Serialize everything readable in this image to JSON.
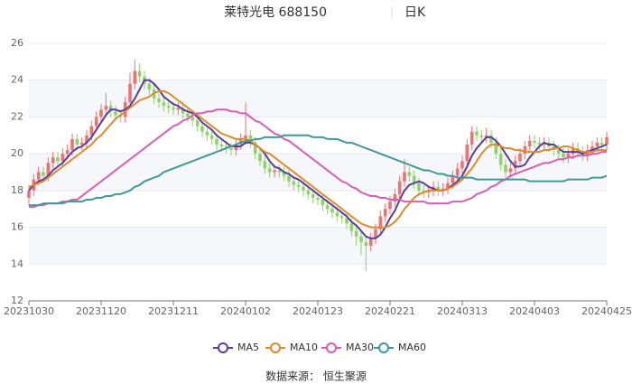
{
  "chart_data": {
    "type": "candlestick",
    "title": "莱特光电 688150",
    "period": "日K",
    "source": "数据来源： 恒生聚源",
    "up_color": "#ef7272",
    "down_color": "#8fd26a",
    "grid": true,
    "ylim": [
      12,
      26
    ],
    "yticks": [
      12,
      14,
      16,
      18,
      20,
      22,
      24,
      26
    ],
    "categories": [
      "20231030",
      null,
      null,
      null,
      null,
      null,
      null,
      null,
      null,
      null,
      null,
      null,
      null,
      null,
      null,
      "20231120",
      null,
      null,
      null,
      null,
      null,
      null,
      null,
      null,
      null,
      null,
      null,
      null,
      null,
      null,
      "20231211",
      null,
      null,
      null,
      null,
      null,
      null,
      null,
      null,
      null,
      null,
      null,
      null,
      null,
      null,
      "20240102",
      null,
      null,
      null,
      null,
      null,
      null,
      null,
      null,
      null,
      null,
      null,
      null,
      null,
      null,
      "20240123",
      null,
      null,
      null,
      null,
      null,
      null,
      null,
      null,
      null,
      null,
      null,
      null,
      null,
      null,
      "20240221",
      null,
      null,
      null,
      null,
      null,
      null,
      null,
      null,
      null,
      null,
      null,
      null,
      null,
      null,
      "20240313",
      null,
      null,
      null,
      null,
      null,
      null,
      null,
      null,
      null,
      null,
      null,
      null,
      null,
      null,
      "20240403",
      null,
      null,
      null,
      null,
      null,
      null,
      null,
      null,
      null,
      null,
      null,
      null,
      null,
      null,
      "20240425"
    ],
    "open": [
      17.6,
      18.0,
      18.6,
      19.0,
      18.8,
      19.5,
      19.8,
      19.6,
      20.0,
      20.2,
      20.8,
      20.5,
      20.6,
      21.0,
      21.5,
      22.0,
      22.4,
      22.6,
      22.3,
      22.1,
      22.0,
      22.8,
      23.8,
      24.5,
      24.2,
      23.8,
      23.5,
      23.0,
      22.8,
      22.6,
      22.5,
      22.4,
      22.5,
      22.2,
      22.0,
      21.8,
      21.5,
      21.2,
      21.0,
      20.8,
      20.5,
      20.4,
      20.3,
      20.2,
      20.5,
      20.8,
      21.0,
      20.6,
      20.0,
      19.6,
      19.2,
      19.0,
      19.1,
      19.0,
      18.8,
      18.5,
      18.3,
      18.2,
      18.0,
      17.8,
      17.6,
      17.5,
      17.2,
      17.0,
      16.8,
      16.6,
      16.5,
      16.2,
      15.8,
      15.5,
      15.2,
      15.0,
      15.4,
      15.9,
      16.6,
      17.0,
      17.4,
      17.8,
      18.5,
      19.0,
      18.8,
      18.4,
      18.0,
      17.9,
      18.0,
      18.2,
      18.0,
      18.1,
      18.4,
      18.8,
      19.2,
      19.6,
      20.5,
      21.2,
      21.0,
      20.9,
      21.0,
      20.6,
      20.0,
      19.4,
      19.0,
      19.2,
      19.6,
      20.0,
      20.4,
      20.7,
      20.6,
      20.5,
      20.6,
      20.4,
      20.2,
      20.0,
      19.8,
      20.0,
      20.3,
      20.1,
      19.9,
      20.2,
      20.4,
      20.6,
      20.5
    ],
    "high": [
      18.3,
      18.9,
      19.3,
      19.3,
      19.8,
      20.1,
      20.1,
      20.3,
      20.5,
      21.1,
      21.1,
      20.9,
      21.3,
      21.8,
      22.3,
      22.7,
      23.3,
      22.9,
      22.6,
      22.4,
      23.1,
      24.4,
      25.1,
      24.9,
      24.5,
      24.1,
      23.8,
      23.3,
      23.1,
      22.9,
      22.8,
      22.8,
      22.8,
      22.5,
      22.3,
      22.1,
      21.8,
      21.5,
      21.3,
      21.1,
      20.8,
      20.7,
      20.6,
      20.8,
      21.1,
      22.8,
      21.3,
      20.9,
      20.3,
      19.9,
      19.5,
      19.4,
      19.4,
      19.3,
      19.1,
      18.8,
      18.6,
      18.5,
      18.3,
      18.1,
      17.9,
      17.8,
      17.5,
      17.3,
      17.1,
      16.9,
      16.8,
      16.5,
      16.1,
      15.8,
      15.5,
      15.7,
      16.2,
      16.9,
      17.3,
      17.7,
      18.1,
      18.8,
      19.7,
      19.3,
      19.1,
      18.7,
      18.3,
      18.3,
      18.5,
      18.5,
      18.4,
      18.7,
      19.1,
      19.5,
      19.9,
      20.8,
      21.5,
      21.5,
      21.3,
      21.4,
      21.3,
      20.9,
      20.3,
      19.7,
      19.5,
      19.9,
      20.3,
      20.7,
      21.0,
      21.0,
      20.9,
      20.9,
      20.9,
      20.7,
      20.5,
      20.3,
      20.3,
      20.6,
      20.6,
      20.4,
      20.5,
      20.7,
      20.9,
      20.9,
      21.2
    ],
    "low": [
      17.2,
      17.7,
      18.3,
      18.5,
      18.5,
      19.2,
      19.3,
      19.3,
      19.7,
      19.9,
      20.2,
      20.2,
      20.3,
      20.7,
      21.2,
      21.7,
      22.1,
      22.0,
      21.8,
      21.7,
      21.7,
      22.5,
      23.5,
      23.9,
      23.5,
      23.2,
      22.7,
      22.5,
      22.3,
      22.2,
      22.1,
      22.1,
      21.9,
      21.7,
      21.5,
      21.2,
      20.9,
      20.7,
      20.5,
      20.2,
      20.1,
      20.0,
      19.9,
      19.9,
      20.2,
      20.5,
      20.3,
      19.7,
      19.3,
      18.9,
      18.7,
      18.7,
      18.7,
      18.5,
      18.2,
      18.0,
      17.9,
      17.7,
      17.5,
      17.3,
      17.2,
      16.9,
      16.7,
      16.5,
      16.3,
      16.2,
      15.9,
      15.5,
      15.0,
      14.5,
      13.6,
      14.7,
      15.1,
      15.6,
      16.3,
      16.7,
      17.1,
      17.5,
      18.2,
      18.5,
      18.1,
      17.7,
      17.6,
      17.6,
      17.7,
      17.7,
      17.7,
      17.8,
      18.1,
      18.5,
      18.9,
      19.3,
      20.2,
      20.7,
      20.6,
      20.6,
      20.3,
      19.7,
      19.1,
      18.7,
      18.7,
      18.9,
      19.3,
      19.7,
      20.1,
      20.3,
      20.2,
      20.2,
      20.1,
      19.9,
      19.7,
      19.5,
      19.5,
      19.7,
      19.8,
      19.6,
      19.6,
      19.9,
      20.1,
      20.2,
      20.2
    ],
    "close": [
      18.0,
      18.6,
      19.0,
      18.8,
      19.5,
      19.8,
      19.6,
      20.0,
      20.2,
      20.8,
      20.5,
      20.6,
      21.0,
      21.5,
      22.0,
      22.4,
      22.6,
      22.3,
      22.1,
      22.0,
      22.8,
      23.8,
      24.5,
      24.2,
      23.8,
      23.5,
      23.0,
      22.8,
      22.6,
      22.5,
      22.4,
      22.5,
      22.2,
      22.0,
      21.8,
      21.5,
      21.2,
      21.0,
      20.8,
      20.5,
      20.4,
      20.3,
      20.2,
      20.5,
      20.8,
      21.0,
      20.6,
      20.0,
      19.6,
      19.2,
      19.0,
      19.1,
      19.0,
      18.8,
      18.5,
      18.3,
      18.2,
      18.0,
      17.8,
      17.6,
      17.5,
      17.2,
      17.0,
      16.8,
      16.6,
      16.5,
      16.2,
      15.8,
      15.5,
      15.2,
      15.0,
      15.4,
      15.9,
      16.6,
      17.0,
      17.4,
      17.8,
      18.5,
      19.0,
      18.8,
      18.4,
      18.0,
      17.9,
      18.0,
      18.2,
      18.0,
      18.1,
      18.4,
      18.8,
      19.2,
      19.6,
      20.5,
      21.2,
      21.0,
      20.9,
      21.0,
      20.6,
      20.0,
      19.4,
      19.0,
      19.2,
      19.6,
      20.0,
      20.4,
      20.7,
      20.6,
      20.5,
      20.6,
      20.4,
      20.2,
      20.0,
      19.8,
      20.0,
      20.3,
      20.1,
      19.9,
      20.2,
      20.4,
      20.6,
      20.5,
      20.9
    ],
    "series": [
      {
        "name": "MA5",
        "color": "#5a3d9e",
        "values": [
          18.0,
          18.3,
          18.5,
          18.6,
          18.8,
          19.1,
          19.3,
          19.5,
          19.8,
          20.1,
          20.3,
          20.4,
          20.6,
          20.9,
          21.3,
          21.7,
          22.1,
          22.4,
          22.4,
          22.3,
          22.4,
          22.6,
          23.0,
          23.5,
          24.0,
          24.0,
          23.8,
          23.5,
          23.1,
          22.9,
          22.7,
          22.6,
          22.4,
          22.3,
          22.2,
          22.0,
          21.7,
          21.5,
          21.3,
          21.0,
          20.8,
          20.6,
          20.4,
          20.4,
          20.4,
          20.6,
          20.6,
          20.5,
          20.3,
          20.0,
          19.6,
          19.3,
          19.2,
          19.0,
          18.9,
          18.7,
          18.6,
          18.4,
          18.2,
          18.0,
          17.8,
          17.6,
          17.4,
          17.2,
          17.0,
          16.8,
          16.6,
          16.3,
          16.1,
          15.8,
          15.5,
          15.4,
          15.4,
          15.6,
          16.0,
          16.5,
          16.9,
          17.5,
          18.0,
          18.3,
          18.4,
          18.5,
          18.4,
          18.2,
          18.1,
          18.0,
          18.0,
          18.1,
          18.3,
          18.5,
          18.8,
          19.3,
          19.9,
          20.3,
          20.6,
          20.9,
          20.9,
          20.7,
          20.4,
          20.0,
          19.6,
          19.3,
          19.3,
          19.4,
          19.8,
          20.1,
          20.4,
          20.6,
          20.5,
          20.5,
          20.3,
          20.1,
          20.1,
          20.1,
          20.1,
          20.0,
          20.1,
          20.2,
          20.3,
          20.4,
          20.5
        ]
      },
      {
        "name": "MA10",
        "color": "#e08a2e",
        "values": [
          18.2,
          18.3,
          18.4,
          18.5,
          18.7,
          18.9,
          19.1,
          19.3,
          19.5,
          19.7,
          19.9,
          20.1,
          20.3,
          20.5,
          20.8,
          21.0,
          21.3,
          21.6,
          21.9,
          22.1,
          22.3,
          22.5,
          22.7,
          22.9,
          23.0,
          23.1,
          23.3,
          23.4,
          23.4,
          23.3,
          23.1,
          22.9,
          22.7,
          22.5,
          22.3,
          22.1,
          21.9,
          21.7,
          21.5,
          21.3,
          21.1,
          21.0,
          20.9,
          20.8,
          20.8,
          20.8,
          20.7,
          20.5,
          20.3,
          20.1,
          20.0,
          19.8,
          19.6,
          19.4,
          19.2,
          19.0,
          18.8,
          18.6,
          18.4,
          18.2,
          18.0,
          17.8,
          17.6,
          17.4,
          17.2,
          17.0,
          16.8,
          16.6,
          16.4,
          16.2,
          16.1,
          16.0,
          16.0,
          16.0,
          16.0,
          16.1,
          16.3,
          16.6,
          17.0,
          17.3,
          17.6,
          17.8,
          17.9,
          18.0,
          18.0,
          18.0,
          18.0,
          18.1,
          18.2,
          18.4,
          18.6,
          18.9,
          19.2,
          19.6,
          20.0,
          20.3,
          20.5,
          20.5,
          20.4,
          20.3,
          20.3,
          20.2,
          20.2,
          20.1,
          20.1,
          20.1,
          20.1,
          20.2,
          20.2,
          20.3,
          20.3,
          20.4,
          20.4,
          20.3,
          20.2,
          20.1,
          20.1,
          20.1,
          20.2,
          20.2,
          20.2
        ]
      },
      {
        "name": "MA30",
        "color": "#d65fb2",
        "values": [
          17.1,
          17.1,
          17.2,
          17.2,
          17.3,
          17.3,
          17.3,
          17.4,
          17.4,
          17.5,
          17.5,
          17.7,
          17.9,
          18.1,
          18.3,
          18.5,
          18.7,
          18.9,
          19.1,
          19.3,
          19.5,
          19.7,
          19.9,
          20.1,
          20.3,
          20.5,
          20.7,
          20.9,
          21.1,
          21.3,
          21.5,
          21.6,
          21.8,
          21.9,
          22.1,
          22.2,
          22.2,
          22.3,
          22.3,
          22.4,
          22.4,
          22.4,
          22.3,
          22.3,
          22.2,
          22.2,
          22.0,
          21.8,
          21.7,
          21.5,
          21.3,
          21.1,
          21.0,
          20.8,
          20.7,
          20.5,
          20.3,
          20.1,
          19.9,
          19.7,
          19.5,
          19.3,
          19.1,
          18.9,
          18.7,
          18.5,
          18.4,
          18.2,
          18.1,
          17.9,
          17.8,
          17.7,
          17.7,
          17.6,
          17.6,
          17.5,
          17.5,
          17.5,
          17.4,
          17.4,
          17.4,
          17.4,
          17.4,
          17.3,
          17.3,
          17.3,
          17.3,
          17.3,
          17.4,
          17.4,
          17.4,
          17.5,
          17.6,
          17.8,
          17.9,
          18.0,
          18.2,
          18.3,
          18.5,
          18.6,
          18.8,
          18.9,
          19.0,
          19.1,
          19.2,
          19.3,
          19.4,
          19.5,
          19.5,
          19.6,
          19.7,
          19.7,
          19.8,
          19.8,
          19.9,
          19.9,
          19.9,
          20.0,
          20.0,
          20.1,
          20.1
        ]
      },
      {
        "name": "MA60",
        "color": "#3f9a97",
        "values": [
          17.2,
          17.2,
          17.2,
          17.3,
          17.3,
          17.3,
          17.3,
          17.3,
          17.4,
          17.4,
          17.4,
          17.4,
          17.5,
          17.5,
          17.6,
          17.6,
          17.7,
          17.7,
          17.8,
          17.8,
          17.9,
          18.0,
          18.2,
          18.3,
          18.5,
          18.6,
          18.7,
          18.8,
          19.0,
          19.1,
          19.2,
          19.3,
          19.4,
          19.5,
          19.6,
          19.7,
          19.8,
          19.9,
          20.0,
          20.1,
          20.2,
          20.3,
          20.4,
          20.5,
          20.6,
          20.7,
          20.7,
          20.8,
          20.8,
          20.9,
          20.9,
          20.9,
          20.9,
          21.0,
          21.0,
          21.0,
          21.0,
          21.0,
          21.0,
          20.9,
          20.9,
          20.9,
          20.8,
          20.8,
          20.8,
          20.7,
          20.6,
          20.6,
          20.5,
          20.4,
          20.3,
          20.2,
          20.1,
          20.0,
          19.9,
          19.8,
          19.7,
          19.6,
          19.5,
          19.4,
          19.3,
          19.2,
          19.1,
          19.1,
          19.0,
          18.9,
          18.9,
          18.8,
          18.8,
          18.7,
          18.7,
          18.7,
          18.7,
          18.6,
          18.6,
          18.6,
          18.6,
          18.6,
          18.6,
          18.6,
          18.6,
          18.6,
          18.6,
          18.6,
          18.5,
          18.5,
          18.5,
          18.5,
          18.5,
          18.5,
          18.5,
          18.5,
          18.6,
          18.6,
          18.6,
          18.6,
          18.6,
          18.7,
          18.7,
          18.7,
          18.8
        ]
      }
    ]
  }
}
